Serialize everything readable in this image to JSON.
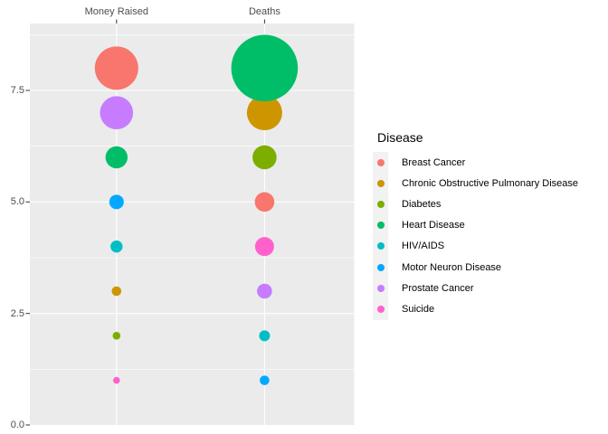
{
  "chart_data": {
    "type": "scatter",
    "subtype": "bubble",
    "title": "",
    "columns": [
      "Money Raised",
      "Deaths"
    ],
    "y_axis": {
      "range": [
        0,
        9
      ],
      "ticks": [
        {
          "label": "0.0",
          "value": 0.0
        },
        {
          "label": "2.5",
          "value": 2.5
        },
        {
          "label": "5.0",
          "value": 5.0
        },
        {
          "label": "7.5",
          "value": 7.5
        }
      ],
      "minor_gridlines": [
        1.25,
        3.75,
        6.25,
        8.75
      ]
    },
    "legend": {
      "title": "Disease",
      "items": [
        {
          "label": "Breast Cancer",
          "color": "#F8766D"
        },
        {
          "label": "Chronic Obstructive Pulmonary Disease",
          "color": "#CD9600"
        },
        {
          "label": "Diabetes",
          "color": "#7CAE00"
        },
        {
          "label": "Heart Disease",
          "color": "#00BE67"
        },
        {
          "label": "HIV/AIDS",
          "color": "#00BFC4"
        },
        {
          "label": "Motor Neuron Disease",
          "color": "#00A9FF"
        },
        {
          "label": "Prostate Cancer",
          "color": "#C77CFF"
        },
        {
          "label": "Suicide",
          "color": "#FF61CC"
        }
      ]
    },
    "points": [
      {
        "column": "Money Raised",
        "disease": "Breast Cancer",
        "rank": 8,
        "radius_px": 24.0
      },
      {
        "column": "Money Raised",
        "disease": "Prostate Cancer",
        "rank": 7,
        "radius_px": 18.3
      },
      {
        "column": "Money Raised",
        "disease": "Heart Disease",
        "rank": 6,
        "radius_px": 12.2
      },
      {
        "column": "Money Raised",
        "disease": "Motor Neuron Disease",
        "rank": 5,
        "radius_px": 8.0
      },
      {
        "column": "Money Raised",
        "disease": "HIV/AIDS",
        "rank": 4,
        "radius_px": 6.7
      },
      {
        "column": "Money Raised",
        "disease": "Chronic Obstructive Pulmonary Disease",
        "rank": 3,
        "radius_px": 5.3
      },
      {
        "column": "Money Raised",
        "disease": "Diabetes",
        "rank": 2,
        "radius_px": 4.3
      },
      {
        "column": "Money Raised",
        "disease": "Suicide",
        "rank": 1,
        "radius_px": 3.8
      },
      {
        "column": "Deaths",
        "disease": "Heart Disease",
        "rank": 8,
        "radius_px": 36.8
      },
      {
        "column": "Deaths",
        "disease": "Chronic Obstructive Pulmonary Disease",
        "rank": 7,
        "radius_px": 19.5
      },
      {
        "column": "Deaths",
        "disease": "Diabetes",
        "rank": 6,
        "radius_px": 13.3
      },
      {
        "column": "Deaths",
        "disease": "Breast Cancer",
        "rank": 5,
        "radius_px": 10.8
      },
      {
        "column": "Deaths",
        "disease": "Suicide",
        "rank": 4,
        "radius_px": 10.5
      },
      {
        "column": "Deaths",
        "disease": "Prostate Cancer",
        "rank": 3,
        "radius_px": 8.3
      },
      {
        "column": "Deaths",
        "disease": "HIV/AIDS",
        "rank": 2,
        "radius_px": 6.0
      },
      {
        "column": "Deaths",
        "disease": "Motor Neuron Disease",
        "rank": 1,
        "radius_px": 5.3
      }
    ],
    "style_colors": {
      "panel_bg": "#EBEBEB",
      "gridline": "#FFFFFF",
      "axis_text": "#4D4D4D",
      "tick_mark": "#333333",
      "legend_key_bg": "#F2F2F2"
    }
  }
}
